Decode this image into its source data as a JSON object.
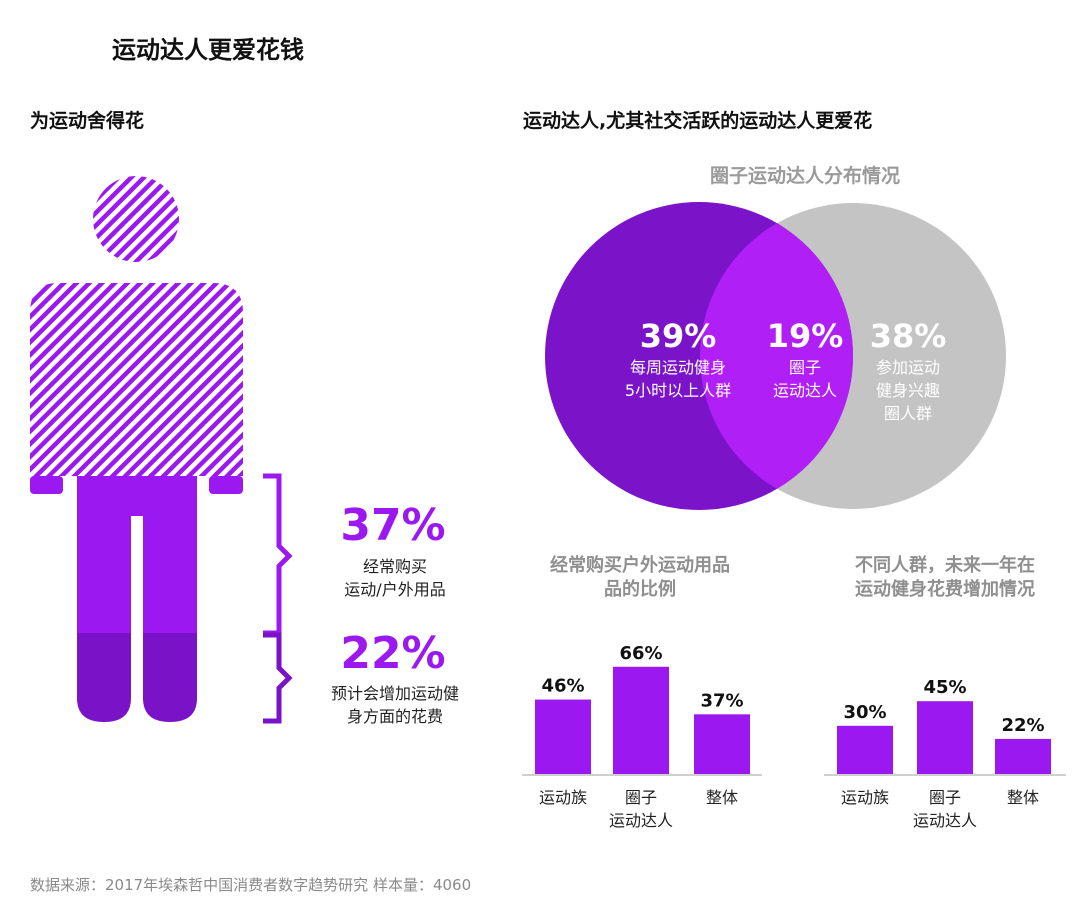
{
  "title": "运动达人更爱花钱",
  "left_heading": "为运动舍得花",
  "right_heading": "运动达人,尤其社交活跃的运动达人更爱花",
  "colors": {
    "purple": "#9b18f0",
    "dark_purple": "#7a12c8",
    "deep_circle": "#7b13c8",
    "gray": "#c4c4c4"
  },
  "figure": {
    "icon": "person-icon",
    "stat1": {
      "value": "37%",
      "label_line1": "经常购买",
      "label_line2": "运动/户外用品"
    },
    "stat2": {
      "value": "22%",
      "label_line1": "预计会增加运动健",
      "label_line2": "身方面的花费"
    }
  },
  "venn": {
    "title": "圈子运动达人分布情况",
    "left": {
      "value": "39%",
      "label_line1": "每周运动健身",
      "label_line2": "5小时以上人群"
    },
    "middle": {
      "value": "19%",
      "label_line1": "圈子",
      "label_line2": "运动达人"
    },
    "right": {
      "value": "38%",
      "label_line1": "参加运动",
      "label_line2": "健身兴趣",
      "label_line3": "圈人群"
    }
  },
  "chart_data": [
    {
      "type": "bar",
      "title": "经常购买户外运动用品的比例",
      "categories": [
        "运动族",
        "圈子\n运动达人",
        "整体"
      ],
      "values": [
        46,
        66,
        37
      ],
      "value_labels": [
        "46%",
        "66%",
        "37%"
      ],
      "ylim": [
        0,
        100
      ]
    },
    {
      "type": "bar",
      "title": "不同人群，未来一年在运动健身花费增加情况",
      "categories": [
        "运动族",
        "圈子\n运动达人",
        "整体"
      ],
      "values": [
        30,
        45,
        22
      ],
      "value_labels": [
        "30%",
        "45%",
        "22%"
      ],
      "ylim": [
        0,
        100
      ]
    }
  ],
  "chart_titles": {
    "c1_line1": "经常购买户外运动用品",
    "c1_line2": "品的比例",
    "c2_line1": "不同人群，未来一年在",
    "c2_line2": "运动健身花费增加情况"
  },
  "footer": "数据来源：2017年埃森哲中国消费者数字趋势研究 样本量：4060"
}
